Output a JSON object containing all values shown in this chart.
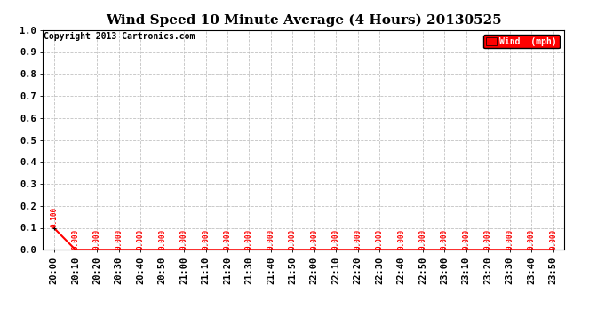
{
  "title": "Wind Speed 10 Minute Average (4 Hours) 20130525",
  "copyright_text": "Copyright 2013 Cartronics.com",
  "legend_label": "Wind  (mph)",
  "legend_bg": "#ff0000",
  "legend_text_color": "#ffffff",
  "line_color": "#ff0000",
  "annotation_color": "#ff0000",
  "xlabel": "",
  "ylabel": "",
  "ylim": [
    0.0,
    1.0
  ],
  "yticks": [
    0.0,
    0.1,
    0.2,
    0.3,
    0.4,
    0.5,
    0.6,
    0.7,
    0.8,
    0.9,
    1.0
  ],
  "ytick_labels": [
    "0.0",
    "0.1",
    "0.2",
    "0.3",
    "0.4",
    "0.5",
    "0.6",
    "0.7",
    "0.8",
    "0.9",
    "1.0"
  ],
  "xtick_labels": [
    "20:00",
    "20:10",
    "20:20",
    "20:30",
    "20:40",
    "20:50",
    "21:00",
    "21:10",
    "21:20",
    "21:30",
    "21:40",
    "21:50",
    "22:00",
    "22:10",
    "22:20",
    "22:30",
    "22:40",
    "22:50",
    "23:00",
    "23:10",
    "23:20",
    "23:30",
    "23:40",
    "23:50"
  ],
  "x_values": [
    0,
    1,
    2,
    3,
    4,
    5,
    6,
    7,
    8,
    9,
    10,
    11,
    12,
    13,
    14,
    15,
    16,
    17,
    18,
    19,
    20,
    21,
    22,
    23
  ],
  "y_values": [
    0.1,
    0.0,
    0.0,
    0.0,
    0.0,
    0.0,
    0.0,
    0.0,
    0.0,
    0.0,
    0.0,
    0.0,
    0.0,
    0.0,
    0.0,
    0.0,
    0.0,
    0.0,
    0.0,
    0.0,
    0.0,
    0.0,
    0.0,
    0.0
  ],
  "annotation_values": [
    "0.100",
    "0.000",
    "0.000",
    "0.000",
    "0.000",
    "0.000",
    "0.000",
    "0.000",
    "0.000",
    "0.000",
    "0.000",
    "0.000",
    "0.000",
    "0.000",
    "0.000",
    "0.000",
    "0.000",
    "0.000",
    "0.000",
    "0.000",
    "0.000",
    "0.000",
    "0.000",
    "0.000"
  ],
  "background_color": "#ffffff",
  "grid_color": "#bbbbbb",
  "title_fontsize": 11,
  "tick_fontsize": 7.5,
  "annotation_fontsize": 5.5,
  "copyright_fontsize": 7
}
